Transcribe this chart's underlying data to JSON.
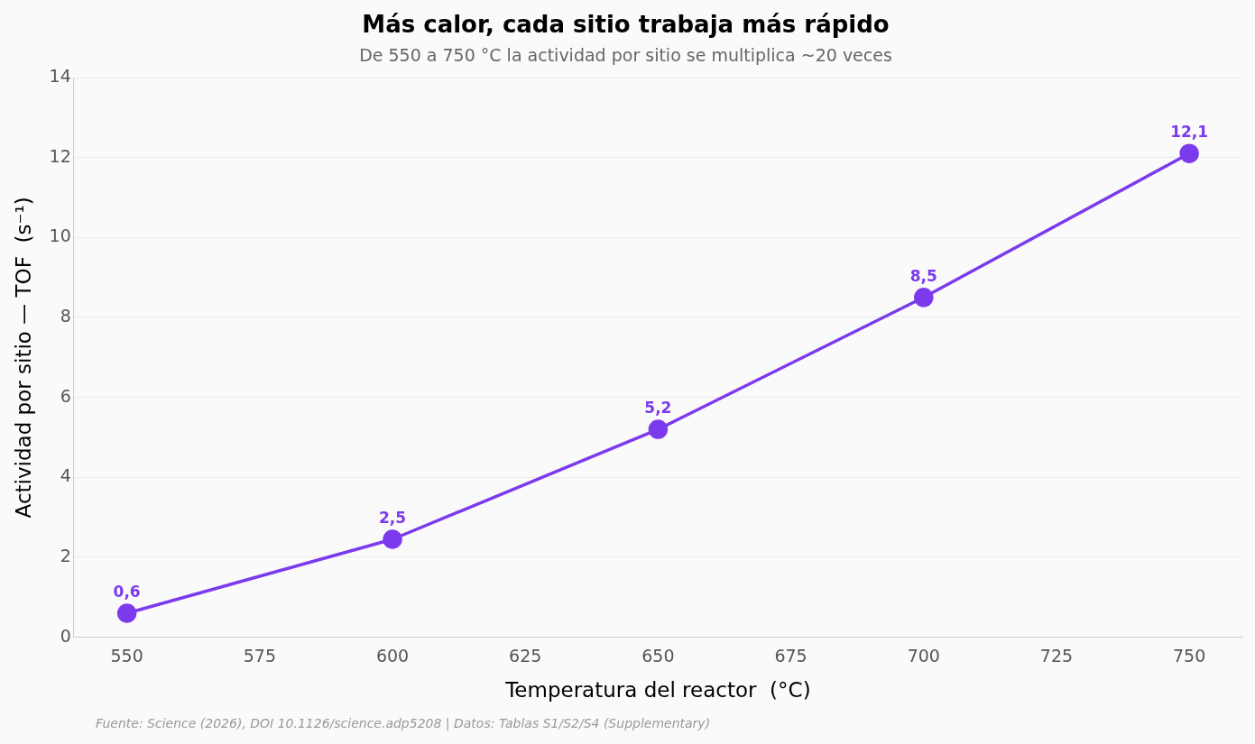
{
  "chart_data": {
    "type": "line",
    "title": "Más calor, cada sitio trabaja más rápido",
    "subtitle": "De 550 a 750 °C la actividad por sitio se multiplica ~20 veces",
    "xlabel": "Temperatura del reactor  (°C)",
    "ylabel": "Actividad por sitio — TOF  (s⁻¹)",
    "x": [
      550,
      600,
      650,
      700,
      750
    ],
    "series": [
      {
        "color": "#7c3aed",
        "values": [
          0.6,
          2.45,
          5.2,
          8.5,
          12.1
        ],
        "value_labels": [
          "0,6",
          "2,5",
          "5,2",
          "8,5",
          "12,1"
        ]
      }
    ],
    "xlim": [
      540,
      760
    ],
    "xticks": [
      550,
      575,
      600,
      625,
      650,
      675,
      700,
      725,
      750
    ],
    "ylim": [
      0,
      14
    ],
    "yticks": [
      0,
      2,
      4,
      6,
      8,
      10,
      12,
      14
    ],
    "grid": "y",
    "legend": false,
    "marker": "circle",
    "line_style": "solid",
    "annotations": [
      "Fuente: Science (2026), DOI 10.1126/science.adp5208 | Datos: Tablas S1/S2/S4 (Supplementary)"
    ]
  }
}
